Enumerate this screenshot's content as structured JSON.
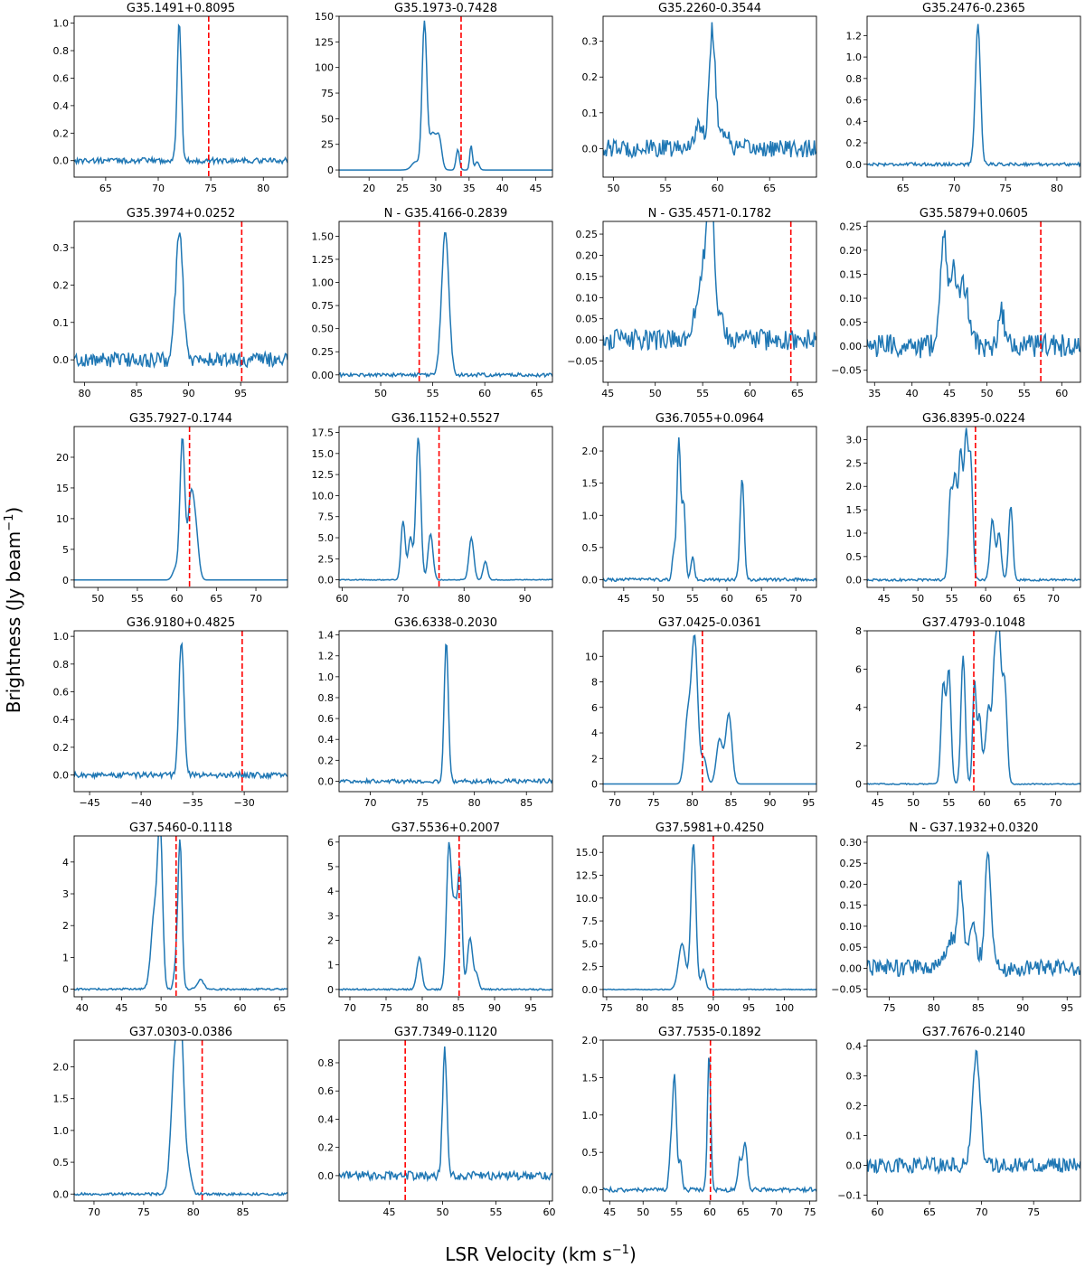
{
  "figure": {
    "xlabel_main": "LSR Velocity (km s",
    "xlabel_unit_sup": "−1",
    "xlabel_close": ")",
    "ylabel_main": "Brightness (Jy beam",
    "ylabel_unit_sup": "−1",
    "ylabel_close": ")"
  },
  "colors": {
    "spectrum": "#1f77b4",
    "velocity_marker": "#ff0000"
  },
  "chart_data": [
    {
      "type": "line",
      "title": "G35.1491+0.8095",
      "xlim": [
        62,
        82.3
      ],
      "ylim": [
        -0.12,
        1.05
      ],
      "xticks": [
        65,
        70,
        75,
        80
      ],
      "yticks": [
        0.0,
        0.2,
        0.4,
        0.6,
        0.8,
        1.0
      ],
      "ytick_labels": [
        "0.0",
        "0.2",
        "0.4",
        "0.6",
        "0.8",
        "1.0"
      ],
      "vline": 74.8,
      "noise": 0.02,
      "peaks": [
        [
          72.0,
          1.0,
          0.2
        ]
      ]
    },
    {
      "type": "line",
      "title": "G35.1973-0.7428",
      "xlim": [
        15.5,
        47.5
      ],
      "ylim": [
        -7,
        150
      ],
      "xticks": [
        20,
        25,
        30,
        35,
        40,
        45
      ],
      "yticks": [
        0,
        25,
        50,
        75,
        100,
        125,
        150
      ],
      "ytick_labels": [
        "0",
        "25",
        "50",
        "75",
        "100",
        "125",
        "150"
      ],
      "vline": 33.8,
      "noise": 0.0,
      "peaks": [
        [
          28.3,
          143,
          0.35
        ],
        [
          29.5,
          35,
          0.5
        ],
        [
          30.5,
          30,
          0.4
        ],
        [
          27.0,
          8,
          0.6
        ],
        [
          33.3,
          20,
          0.25
        ],
        [
          35.3,
          24,
          0.2
        ],
        [
          36.2,
          8,
          0.3
        ]
      ]
    },
    {
      "type": "line",
      "title": "G35.2260-0.3544",
      "xlim": [
        49,
        69.5
      ],
      "ylim": [
        -0.08,
        0.37
      ],
      "xticks": [
        50,
        55,
        60,
        65
      ],
      "yticks": [
        0.0,
        0.1,
        0.2,
        0.3
      ],
      "ytick_labels": [
        "0.0",
        "0.1",
        "0.2",
        "0.3"
      ],
      "vline": null,
      "noise": 0.025,
      "peaks": [
        [
          59.5,
          0.33,
          0.3
        ],
        [
          58.2,
          0.06,
          0.5
        ],
        [
          60.6,
          0.05,
          0.4
        ]
      ]
    },
    {
      "type": "line",
      "title": "G35.2476-0.2365",
      "xlim": [
        61.5,
        82.3
      ],
      "ylim": [
        -0.12,
        1.38
      ],
      "xticks": [
        65,
        70,
        75,
        80
      ],
      "yticks": [
        0.0,
        0.2,
        0.4,
        0.6,
        0.8,
        1.0,
        1.2
      ],
      "ytick_labels": [
        "0.0",
        "0.2",
        "0.4",
        "0.6",
        "0.8",
        "1.0",
        "1.2"
      ],
      "vline": null,
      "noise": 0.015,
      "peaks": [
        [
          72.3,
          1.3,
          0.25
        ]
      ]
    },
    {
      "type": "line",
      "title": "G35.3974+0.0252",
      "xlim": [
        79,
        99.5
      ],
      "ylim": [
        -0.06,
        0.37
      ],
      "xticks": [
        80,
        85,
        90,
        95
      ],
      "yticks": [
        0.0,
        0.1,
        0.2,
        0.3
      ],
      "ytick_labels": [
        "0.0",
        "0.1",
        "0.2",
        "0.3"
      ],
      "vline": 95.1,
      "noise": 0.02,
      "peaks": [
        [
          89.1,
          0.34,
          0.35
        ]
      ]
    },
    {
      "type": "line",
      "title": "N - G35.4166-0.2839",
      "xlim": [
        46,
        66.5
      ],
      "ylim": [
        -0.08,
        1.66
      ],
      "xticks": [
        50,
        55,
        60,
        65
      ],
      "yticks": [
        0.0,
        0.25,
        0.5,
        0.75,
        1.0,
        1.25,
        1.5
      ],
      "ytick_labels": [
        "0.00",
        "0.25",
        "0.50",
        "0.75",
        "1.00",
        "1.25",
        "1.50"
      ],
      "vline": 53.7,
      "noise": 0.02,
      "peaks": [
        [
          56.2,
          1.55,
          0.35
        ]
      ]
    },
    {
      "type": "line",
      "title": "N - G35.4571-0.1782",
      "xlim": [
        44.5,
        67
      ],
      "ylim": [
        -0.1,
        0.28
      ],
      "xticks": [
        45,
        50,
        55,
        60,
        65
      ],
      "yticks": [
        -0.05,
        0.0,
        0.05,
        0.1,
        0.15,
        0.2,
        0.25
      ],
      "ytick_labels": [
        "−0.05",
        "0.00",
        "0.05",
        "0.10",
        "0.15",
        "0.20",
        "0.25"
      ],
      "vline": 64.3,
      "noise": 0.025,
      "peaks": [
        [
          55.0,
          0.17,
          0.6
        ],
        [
          55.6,
          0.2,
          0.25
        ],
        [
          56.1,
          0.24,
          0.25
        ],
        [
          57.0,
          0.06,
          0.3
        ]
      ]
    },
    {
      "type": "line",
      "title": "G35.5879+0.0605",
      "xlim": [
        34,
        62.5
      ],
      "ylim": [
        -0.075,
        0.26
      ],
      "xticks": [
        35,
        40,
        45,
        50,
        55,
        60
      ],
      "yticks": [
        -0.05,
        0.0,
        0.05,
        0.1,
        0.15,
        0.2,
        0.25
      ],
      "ytick_labels": [
        "−0.05",
        "0.00",
        "0.05",
        "0.10",
        "0.15",
        "0.20",
        "0.25"
      ],
      "vline": 57.2,
      "noise": 0.025,
      "peaks": [
        [
          44.2,
          0.22,
          0.4
        ],
        [
          45.5,
          0.15,
          0.6
        ],
        [
          47.0,
          0.12,
          0.6
        ],
        [
          52.0,
          0.07,
          0.4
        ]
      ]
    },
    {
      "type": "line",
      "title": "G35.7927-0.1744",
      "xlim": [
        47,
        74
      ],
      "ylim": [
        -1.2,
        25
      ],
      "xticks": [
        50,
        55,
        60,
        65,
        70
      ],
      "yticks": [
        0,
        5,
        10,
        15,
        20
      ],
      "ytick_labels": [
        "0",
        "5",
        "10",
        "15",
        "20"
      ],
      "vline": 61.6,
      "noise": 0.0,
      "peaks": [
        [
          60.7,
          23,
          0.3
        ],
        [
          61.7,
          11,
          0.35
        ],
        [
          62.3,
          9,
          0.4
        ],
        [
          59.9,
          2,
          0.4
        ]
      ]
    },
    {
      "type": "line",
      "title": "G36.1152+0.5527",
      "xlim": [
        59.5,
        94.5
      ],
      "ylim": [
        -0.9,
        18.2
      ],
      "xticks": [
        60,
        70,
        80,
        90
      ],
      "yticks": [
        0,
        2.5,
        5,
        7.5,
        10,
        12.5,
        15,
        17.5
      ],
      "ytick_labels": [
        "0.0",
        "2.5",
        "5.0",
        "7.5",
        "10.0",
        "12.5",
        "15.0",
        "17.5"
      ],
      "vline": 75.9,
      "noise": 0.05,
      "peaks": [
        [
          72.5,
          17,
          0.4
        ],
        [
          70.0,
          7,
          0.35
        ],
        [
          71.2,
          5,
          0.35
        ],
        [
          74.5,
          5.5,
          0.4
        ],
        [
          81.2,
          5,
          0.4
        ],
        [
          83.5,
          2.2,
          0.35
        ]
      ]
    },
    {
      "type": "line",
      "title": "G36.7055+0.0964",
      "xlim": [
        42,
        73
      ],
      "ylim": [
        -0.12,
        2.38
      ],
      "xticks": [
        45,
        50,
        55,
        60,
        65,
        70
      ],
      "yticks": [
        0.0,
        0.5,
        1.0,
        1.5,
        2.0
      ],
      "ytick_labels": [
        "0.0",
        "0.5",
        "1.0",
        "1.5",
        "2.0"
      ],
      "vline": null,
      "noise": 0.025,
      "peaks": [
        [
          53.0,
          2.2,
          0.25
        ],
        [
          53.7,
          1.2,
          0.25
        ],
        [
          52.3,
          0.45,
          0.25
        ],
        [
          55.0,
          0.35,
          0.25
        ],
        [
          62.2,
          1.55,
          0.3
        ]
      ]
    },
    {
      "type": "line",
      "title": "G36.8395-0.0224",
      "xlim": [
        42.5,
        74
      ],
      "ylim": [
        -0.16,
        3.28
      ],
      "xticks": [
        45,
        50,
        55,
        60,
        65,
        70
      ],
      "yticks": [
        0.0,
        0.5,
        1.0,
        1.5,
        2.0,
        2.5,
        3.0
      ],
      "ytick_labels": [
        "0.0",
        "0.5",
        "1.0",
        "1.5",
        "2.0",
        "2.5",
        "3.0"
      ],
      "vline": 58.5,
      "noise": 0.025,
      "peaks": [
        [
          54.8,
          1.8,
          0.3
        ],
        [
          55.5,
          2.1,
          0.3
        ],
        [
          56.3,
          2.7,
          0.3
        ],
        [
          57.1,
          3.0,
          0.3
        ],
        [
          57.8,
          2.5,
          0.3
        ],
        [
          61.0,
          1.3,
          0.35
        ],
        [
          62.0,
          1.0,
          0.3
        ],
        [
          63.7,
          1.6,
          0.3
        ]
      ]
    },
    {
      "type": "line",
      "title": "G36.9180+0.4825",
      "xlim": [
        -46.5,
        -25.8
      ],
      "ylim": [
        -0.12,
        1.04
      ],
      "xticks": [
        -45,
        -40,
        -35,
        -30
      ],
      "yticks": [
        0.0,
        0.2,
        0.4,
        0.6,
        0.8,
        1.0
      ],
      "ytick_labels": [
        "0.0",
        "0.2",
        "0.4",
        "0.6",
        "0.8",
        "1.0"
      ],
      "vline": -30.2,
      "noise": 0.02,
      "peaks": [
        [
          -36.1,
          0.96,
          0.25
        ]
      ]
    },
    {
      "type": "line",
      "title": "G36.6338-0.2030",
      "xlim": [
        67,
        87.5
      ],
      "ylim": [
        -0.1,
        1.44
      ],
      "xticks": [
        70,
        75,
        80,
        85
      ],
      "yticks": [
        0.0,
        0.2,
        0.4,
        0.6,
        0.8,
        1.0,
        1.2,
        1.4
      ],
      "ytick_labels": [
        "0.0",
        "0.2",
        "0.4",
        "0.6",
        "0.8",
        "1.0",
        "1.2",
        "1.4"
      ],
      "vline": null,
      "noise": 0.02,
      "peaks": [
        [
          77.3,
          1.33,
          0.2
        ]
      ]
    },
    {
      "type": "line",
      "title": "G37.0425-0.0361",
      "xlim": [
        68.5,
        96
      ],
      "ylim": [
        -0.6,
        12
      ],
      "xticks": [
        70,
        75,
        80,
        85,
        90,
        95
      ],
      "yticks": [
        0,
        2,
        4,
        6,
        8,
        10
      ],
      "ytick_labels": [
        "0",
        "2",
        "4",
        "6",
        "8",
        "10"
      ],
      "vline": 81.3,
      "noise": 0.0,
      "peaks": [
        [
          80.3,
          11.3,
          0.4
        ],
        [
          79.4,
          5,
          0.4
        ],
        [
          81.5,
          2,
          0.35
        ],
        [
          83.5,
          3.5,
          0.4
        ],
        [
          84.7,
          5.5,
          0.4
        ]
      ]
    },
    {
      "type": "line",
      "title": "G37.4793-0.1048",
      "xlim": [
        43.5,
        73.5
      ],
      "ylim": [
        -0.4,
        8
      ],
      "xticks": [
        45,
        50,
        55,
        60,
        65,
        70
      ],
      "yticks": [
        0,
        2,
        4,
        6,
        8
      ],
      "ytick_labels": [
        "0",
        "2",
        "4",
        "6",
        "8"
      ],
      "vline": 58.5,
      "noise": 0.03,
      "peaks": [
        [
          54.2,
          5.2,
          0.3
        ],
        [
          55.0,
          5.9,
          0.3
        ],
        [
          57.0,
          6.7,
          0.3
        ],
        [
          58.6,
          5.4,
          0.25
        ],
        [
          59.3,
          3.5,
          0.25
        ],
        [
          60.6,
          3.8,
          0.3
        ],
        [
          61.4,
          5.8,
          0.3
        ],
        [
          62.0,
          7.5,
          0.3
        ],
        [
          62.8,
          5.5,
          0.35
        ],
        [
          60.0,
          1.3,
          0.3
        ]
      ]
    },
    {
      "type": "line",
      "title": "G37.5460-0.1118",
      "xlim": [
        39,
        66
      ],
      "ylim": [
        -0.24,
        4.82
      ],
      "xticks": [
        40,
        45,
        50,
        55,
        60,
        65
      ],
      "yticks": [
        0,
        1,
        2,
        3,
        4
      ],
      "ytick_labels": [
        "0",
        "1",
        "2",
        "3",
        "4"
      ],
      "vline": 51.9,
      "noise": 0.03,
      "peaks": [
        [
          49.9,
          4.6,
          0.3
        ],
        [
          49.2,
          2.5,
          0.45
        ],
        [
          51.9,
          0.8,
          0.25
        ],
        [
          52.4,
          4.6,
          0.25
        ],
        [
          55.0,
          0.3,
          0.4
        ]
      ]
    },
    {
      "type": "line",
      "title": "G37.5536+0.2007",
      "xlim": [
        68.5,
        98
      ],
      "ylim": [
        -0.3,
        6.25
      ],
      "xticks": [
        70,
        75,
        80,
        85,
        90,
        95
      ],
      "yticks": [
        0,
        1,
        2,
        3,
        4,
        5,
        6
      ],
      "ytick_labels": [
        "0",
        "1",
        "2",
        "3",
        "4",
        "5",
        "6"
      ],
      "vline": 85.1,
      "noise": 0.03,
      "peaks": [
        [
          79.6,
          1.3,
          0.35
        ],
        [
          83.7,
          5.9,
          0.35
        ],
        [
          84.5,
          3,
          0.3
        ],
        [
          85.2,
          4.8,
          0.3
        ],
        [
          86.6,
          2.1,
          0.35
        ],
        [
          87.5,
          0.6,
          0.3
        ]
      ]
    },
    {
      "type": "line",
      "title": "G37.5981+0.4250",
      "xlim": [
        74.5,
        104.5
      ],
      "ylim": [
        -0.8,
        16.8
      ],
      "xticks": [
        75,
        80,
        85,
        90,
        95,
        100
      ],
      "yticks": [
        0,
        2.5,
        5,
        7.5,
        10,
        12.5,
        15
      ],
      "ytick_labels": [
        "0.0",
        "2.5",
        "5.0",
        "7.5",
        "10.0",
        "12.5",
        "15.0"
      ],
      "vline": 90.0,
      "noise": 0.05,
      "peaks": [
        [
          87.2,
          16,
          0.35
        ],
        [
          85.6,
          5,
          0.5
        ],
        [
          88.6,
          2.2,
          0.3
        ]
      ]
    },
    {
      "type": "line",
      "title": "N - G37.1932+0.0320",
      "xlim": [
        72.5,
        96.5
      ],
      "ylim": [
        -0.068,
        0.315
      ],
      "xticks": [
        75,
        80,
        85,
        90,
        95
      ],
      "yticks": [
        -0.05,
        0.0,
        0.05,
        0.1,
        0.15,
        0.2,
        0.25,
        0.3
      ],
      "ytick_labels": [
        "−0.05",
        "0.00",
        "0.05",
        "0.10",
        "0.15",
        "0.20",
        "0.25",
        "0.30"
      ],
      "vline": null,
      "noise": 0.02,
      "peaks": [
        [
          82.0,
          0.07,
          0.6
        ],
        [
          83.0,
          0.19,
          0.3
        ],
        [
          84.3,
          0.1,
          0.5
        ],
        [
          86.1,
          0.28,
          0.35
        ]
      ]
    },
    {
      "type": "line",
      "title": "G37.0303-0.0386",
      "xlim": [
        68,
        89.5
      ],
      "ylim": [
        -0.11,
        2.42
      ],
      "xticks": [
        70,
        75,
        80,
        85
      ],
      "yticks": [
        0.0,
        0.5,
        1.0,
        1.5,
        2.0
      ],
      "ytick_labels": [
        "0.0",
        "0.5",
        "1.0",
        "1.5",
        "2.0"
      ],
      "vline": 80.9,
      "noise": 0.02,
      "peaks": [
        [
          78.2,
          2.2,
          0.4
        ],
        [
          78.8,
          2.0,
          0.3
        ],
        [
          79.5,
          0.4,
          0.3
        ]
      ]
    },
    {
      "type": "line",
      "title": "G37.7349-0.1120",
      "xlim": [
        40.3,
        60.3
      ],
      "ylim": [
        -0.18,
        0.96
      ],
      "xticks": [
        45,
        50,
        55,
        60
      ],
      "yticks": [
        0.0,
        0.2,
        0.4,
        0.6,
        0.8
      ],
      "ytick_labels": [
        "0.0",
        "0.2",
        "0.4",
        "0.6",
        "0.8"
      ],
      "vline": 46.5,
      "noise": 0.03,
      "peaks": [
        [
          50.2,
          0.9,
          0.2
        ]
      ]
    },
    {
      "type": "line",
      "title": "G37.7535-0.1892",
      "xlim": [
        44,
        76
      ],
      "ylim": [
        -0.15,
        2.0
      ],
      "xticks": [
        45,
        50,
        55,
        60,
        65,
        70,
        75
      ],
      "yticks": [
        0.0,
        0.5,
        1.0,
        1.5,
        2.0
      ],
      "ytick_labels": [
        "0.0",
        "0.5",
        "1.0",
        "1.5",
        "2.0"
      ],
      "vline": 60.1,
      "noise": 0.03,
      "peaks": [
        [
          54.7,
          1.5,
          0.3
        ],
        [
          54.1,
          0.4,
          0.25
        ],
        [
          55.6,
          0.4,
          0.25
        ],
        [
          59.9,
          1.8,
          0.25
        ],
        [
          64.5,
          0.4,
          0.3
        ],
        [
          65.3,
          0.65,
          0.3
        ]
      ]
    },
    {
      "type": "line",
      "title": "G37.7676-0.2140",
      "xlim": [
        59,
        79.5
      ],
      "ylim": [
        -0.12,
        0.42
      ],
      "xticks": [
        60,
        65,
        70,
        75
      ],
      "yticks": [
        -0.1,
        0.0,
        0.1,
        0.2,
        0.3,
        0.4
      ],
      "ytick_labels": [
        "−0.1",
        "0.0",
        "0.1",
        "0.2",
        "0.3",
        "0.4"
      ],
      "vline": null,
      "noise": 0.025,
      "peaks": [
        [
          69.5,
          0.38,
          0.35
        ]
      ]
    }
  ]
}
